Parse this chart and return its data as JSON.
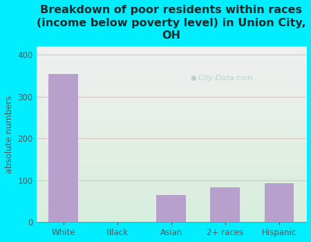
{
  "categories": [
    "White",
    "Black",
    "Asian",
    "2+ races",
    "Hispanic"
  ],
  "values": [
    355,
    0,
    65,
    82,
    93
  ],
  "bar_color": "#b8a0cc",
  "title": "Breakdown of poor residents within races\n(income below poverty level) in Union City,\nOH",
  "ylabel": "absolute numbers",
  "ylim": [
    0,
    420
  ],
  "yticks": [
    0,
    100,
    200,
    300,
    400
  ],
  "background_color": "#00eeff",
  "plot_bg_color_top": "#f0f0f0",
  "plot_bg_color_bottom": "#d8eedd",
  "title_color": "#1a2a2a",
  "axis_label_color": "#555555",
  "tick_color": "#555555",
  "grid_color": "#d8c0c0",
  "watermark": "City-Data.com",
  "title_fontsize": 11.5,
  "ylabel_fontsize": 9
}
